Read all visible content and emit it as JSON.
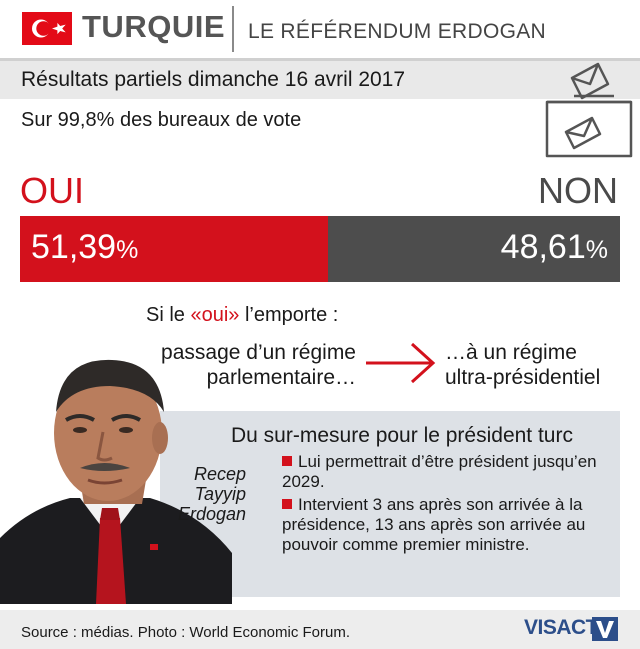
{
  "header": {
    "country": "TURQUIE",
    "subject": "LE RÉFÉRENDUM ERDOGAN"
  },
  "results": {
    "title": "Résultats partiels dimanche 16 avril 2017",
    "subtitle": "Sur 99,8% des bureaux de vote",
    "oui_label": "OUI",
    "non_label": "NON",
    "oui_value": "51,39",
    "non_value": "48,61",
    "oui_percent": 51.39,
    "non_percent": 48.61,
    "percent_sign": "%"
  },
  "condition": {
    "prefix": "Si le ",
    "highlight": "«oui»",
    "suffix": " l’emporte :",
    "from_line1": "passage d’un régime",
    "from_line2": "parlementaire…",
    "to_line1": "…à un régime",
    "to_line2": "ultra-présidentiel"
  },
  "panel": {
    "title": "Du sur-mesure pour le président turc",
    "person_line1": "Recep",
    "person_line2": "Tayyip",
    "person_line3": "Erdogan",
    "bullets": [
      "Lui permettrait d’être président jusqu’en 2029.",
      "Intervient 3 ans après son arrivée à la présidence, 13 ans après son arrivée au pouvoir comme premier ministre."
    ]
  },
  "footer": {
    "source": "Source : médias. Photo : World Economic Forum.",
    "logo": "VISACTU"
  },
  "colors": {
    "oui": "#d3111c",
    "non": "#4d4d4d",
    "logo": "#2c4e8a"
  }
}
